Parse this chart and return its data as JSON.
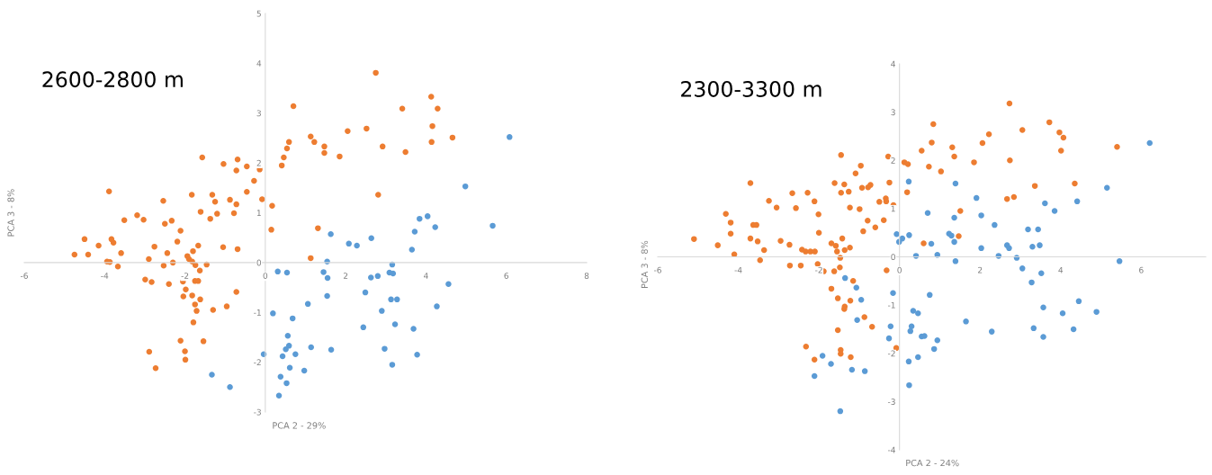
{
  "chart_data": [
    {
      "type": "scatter",
      "title": "2600-2800 m",
      "xlabel": "PCA 2 - 29%",
      "ylabel": "PCA 3 - 8%",
      "xlim": [
        -6,
        8
      ],
      "ylim": [
        -3,
        5
      ],
      "xticks": [
        -6,
        -4,
        -2,
        0,
        2,
        4,
        6,
        8
      ],
      "yticks": [
        -3,
        -2,
        -1,
        0,
        1,
        2,
        3,
        4,
        5
      ],
      "grid": false,
      "marker": "circle",
      "series": [
        {
          "color": "#ed7d31",
          "x": [
            2.75,
            4.13,
            3.41,
            4.29,
            0.7,
            2.52,
            2.05,
            4.16,
            4.66,
            4.14,
            1.13,
            1.22,
            0.59,
            0.54,
            2.92,
            1.47,
            1.47,
            3.49,
            1.85,
            0.46,
            0.41,
            -1.57,
            -0.69,
            -1.04,
            -0.72,
            -0.46,
            -0.14,
            -0.28,
            -3.89,
            -0.46,
            -1.83,
            -1.32,
            -1.25,
            -2.54,
            -0.88,
            -0.72,
            -0.08,
            0.17,
            2.81,
            -1.61,
            -1.2,
            -0.78,
            -1.37,
            -3.19,
            -3.03,
            -3.51,
            -2.33,
            -2.5,
            -2.11,
            0.15,
            1.31,
            -4.5,
            -3.83,
            -3.78,
            -2.19,
            -4.15,
            -2.76,
            -1.67,
            -1.05,
            -0.69,
            -4.75,
            -4.41,
            -3.59,
            -2.44,
            -1.94,
            -1.8,
            -1.9,
            -3.94,
            -3.87,
            -2.9,
            -2.3,
            -1.82,
            -1.74,
            -1.46,
            -2.53,
            -3.67,
            -1.63,
            1.13,
            -2.99,
            -2.83,
            -2.4,
            -2.05,
            -1.75,
            -1.67,
            -1.98,
            -2.04,
            -1.82,
            -1.62,
            -0.72,
            -1.75,
            -1.71,
            -1.3,
            -0.96,
            -1.79,
            -2.11,
            -1.54,
            -2.89,
            -2.0,
            -1.99,
            -2.73
          ],
          "values": [
            3.81,
            3.33,
            3.09,
            3.09,
            3.14,
            2.69,
            2.64,
            2.74,
            2.51,
            2.42,
            2.53,
            2.42,
            2.42,
            2.29,
            2.33,
            2.33,
            2.2,
            2.22,
            2.13,
            2.11,
            1.95,
            2.11,
            2.07,
            1.98,
            1.85,
            1.93,
            1.87,
            1.64,
            1.43,
            1.42,
            1.36,
            1.36,
            1.22,
            1.24,
            1.26,
            1.17,
            1.27,
            1.14,
            1.36,
            1.02,
            0.98,
            0.99,
            0.88,
            0.95,
            0.86,
            0.85,
            0.84,
            0.78,
            0.64,
            0.66,
            0.69,
            0.47,
            0.47,
            0.4,
            0.42,
            0.34,
            0.32,
            0.34,
            0.31,
            0.27,
            0.16,
            0.16,
            0.19,
            0.19,
            0.13,
            0.23,
            0.07,
            0.02,
            0.01,
            0.07,
            0.0,
            0.02,
            -0.05,
            -0.04,
            -0.06,
            -0.08,
            -0.16,
            0.09,
            -0.34,
            -0.39,
            -0.43,
            -0.38,
            -0.37,
            -0.37,
            -0.54,
            -0.68,
            -0.66,
            -0.74,
            -0.59,
            -0.84,
            -0.97,
            -0.95,
            -0.88,
            -1.2,
            -1.57,
            -1.58,
            -1.79,
            -1.78,
            -1.95,
            -2.12
          ]
        },
        {
          "color": "#5b9bd5",
          "x": [
            6.08,
            4.98,
            4.04,
            3.84,
            5.66,
            4.23,
            3.72,
            1.63,
            2.64,
            2.08,
            2.28,
            3.65,
            1.54,
            3.16,
            0.31,
            0.54,
            1.45,
            1.55,
            2.63,
            2.8,
            3.09,
            3.18,
            4.56,
            2.49,
            1.54,
            3.13,
            3.28,
            1.06,
            4.27,
            2.9,
            0.19,
            0.68,
            3.23,
            2.44,
            3.69,
            0.56,
            0.59,
            0.51,
            1.14,
            1.64,
            2.97,
            -0.04,
            0.75,
            0.43,
            3.78,
            3.16,
            0.61,
            0.97,
            -1.33,
            0.38,
            0.53,
            -0.88,
            0.34
          ],
          "values": [
            2.52,
            1.53,
            0.93,
            0.88,
            0.74,
            0.71,
            0.62,
            0.57,
            0.49,
            0.38,
            0.34,
            0.26,
            0.02,
            -0.04,
            -0.18,
            -0.2,
            -0.19,
            -0.31,
            -0.3,
            -0.27,
            -0.2,
            -0.22,
            -0.43,
            -0.6,
            -0.67,
            -0.74,
            -0.74,
            -0.83,
            -0.88,
            -0.97,
            -1.02,
            -1.12,
            -1.24,
            -1.3,
            -1.33,
            -1.47,
            -1.67,
            -1.74,
            -1.7,
            -1.75,
            -1.73,
            -1.84,
            -1.84,
            -1.88,
            -1.85,
            -2.05,
            -2.11,
            -2.17,
            -2.25,
            -2.29,
            -2.42,
            -2.5,
            -2.67
          ]
        }
      ]
    },
    {
      "type": "scatter",
      "title": "2300-3300 m",
      "xlabel": "PCA 2 - 24%",
      "ylabel": "PCA 3 - 8%",
      "xlim": [
        -6,
        7.6
      ],
      "ylim": [
        -4,
        4
      ],
      "xticks": [
        -6,
        -4,
        -2,
        0,
        2,
        4,
        6
      ],
      "yticks": [
        -4,
        -3,
        -2,
        -1,
        0,
        1,
        2,
        3,
        4
      ],
      "grid": false,
      "marker": "circle",
      "series": [
        {
          "color": "#ed7d31",
          "x": [
            2.73,
            0.84,
            3.72,
            3.05,
            3.97,
            4.07,
            2.22,
            0.8,
            2.06,
            1.31,
            5.4,
            0.55,
            4.01,
            -1.45,
            -0.28,
            1.36,
            2.74,
            0.12,
            0.21,
            1.85,
            -0.96,
            0.73,
            1.03,
            -1.09,
            -3.7,
            -1.61,
            -1.37,
            -0.25,
            3.36,
            4.35,
            -0.72,
            -0.93,
            -0.78,
            -1.45,
            -1.26,
            0.19,
            -2.66,
            -2.28,
            -3.24,
            -2.11,
            -0.34,
            -0.5,
            -0.33,
            2.84,
            2.67,
            -3.05,
            -2.57,
            -1.23,
            -0.99,
            -0.15,
            1.51,
            -4.31,
            -2.01,
            -0.79,
            -0.39,
            -4.19,
            -3.63,
            -3.55,
            -0.6,
            -0.9,
            -4.19,
            -2.0,
            1.47,
            -5.1,
            -3.7,
            -3.52,
            -2.95,
            -1.42,
            -4.51,
            -2.73,
            -1.69,
            -1.58,
            -1.23,
            0.6,
            -3.36,
            -2.42,
            -2.33,
            -2.21,
            -2.1,
            -1.55,
            -1.36,
            -4.1,
            -1.47,
            -3.46,
            -2.72,
            -2.45,
            -2.03,
            -1.88,
            -1.62,
            -1.48,
            -0.32,
            -1.15,
            -1.69,
            -1.53,
            -1.22,
            -1.36,
            -1.37,
            -0.87,
            -0.68,
            -1.53,
            -0.08,
            -2.32,
            -1.46,
            -1.46,
            -2.11,
            -1.21
          ],
          "values": [
            3.18,
            2.75,
            2.79,
            2.63,
            2.58,
            2.47,
            2.54,
            2.37,
            2.36,
            2.27,
            2.28,
            2.2,
            2.2,
            2.11,
            2.08,
            2.08,
            2.0,
            1.96,
            1.92,
            1.96,
            1.89,
            1.87,
            1.77,
            1.73,
            1.53,
            1.53,
            1.5,
            1.54,
            1.47,
            1.52,
            1.49,
            1.43,
            1.44,
            1.33,
            1.35,
            1.34,
            1.32,
            1.33,
            1.16,
            1.15,
            1.21,
            1.14,
            1.15,
            1.24,
            1.2,
            1.02,
            1.01,
            1.02,
            0.99,
            1.07,
            0.95,
            0.89,
            0.88,
            0.75,
            0.76,
            0.71,
            0.66,
            0.66,
            0.61,
            0.53,
            0.48,
            0.5,
            0.43,
            0.37,
            0.38,
            0.32,
            0.33,
            0.38,
            0.24,
            0.25,
            0.28,
            0.23,
            0.19,
            0.28,
            0.14,
            0.15,
            0.11,
            0.11,
            0.11,
            0.11,
            0.14,
            0.05,
            -0.02,
            -0.07,
            -0.18,
            -0.18,
            -0.15,
            -0.3,
            -0.3,
            -0.22,
            -0.28,
            -0.5,
            -0.66,
            -0.86,
            -0.91,
            -1.03,
            -1.08,
            -1.25,
            -1.45,
            -1.52,
            -1.89,
            -1.86,
            -1.93,
            -2.01,
            -2.13,
            -2.08
          ]
        },
        {
          "color": "#5b9bd5",
          "x": [
            6.21,
            0.23,
            1.39,
            5.15,
            1.91,
            4.41,
            3.61,
            3.85,
            0.7,
            1.36,
            2.03,
            2.36,
            3.19,
            3.44,
            -0.07,
            0.24,
            0.07,
            -0.01,
            1.23,
            1.29,
            1.36,
            0.79,
            2.67,
            2.72,
            3.3,
            3.48,
            2.03,
            0.41,
            0.94,
            2.46,
            2.91,
            1.39,
            5.46,
            3.05,
            3.52,
            3.28,
            -1.35,
            -1.07,
            -0.95,
            -0.16,
            0.75,
            0.34,
            0.46,
            3.57,
            4.45,
            4.05,
            4.89,
            -1.05,
            1.65,
            -0.22,
            0.3,
            0.27,
            2.29,
            3.33,
            4.32,
            0.55,
            0.62,
            -0.26,
            0.94,
            3.57,
            0.86,
            -1.91,
            0.46,
            0.23,
            -1.7,
            -1.18,
            -0.86,
            -2.11,
            0.24,
            -1.47
          ],
          "values": [
            2.36,
            1.56,
            1.52,
            1.43,
            1.22,
            1.15,
            1.11,
            0.95,
            0.91,
            0.81,
            0.86,
            0.66,
            0.57,
            0.57,
            0.47,
            0.45,
            0.38,
            0.31,
            0.48,
            0.44,
            0.31,
            0.27,
            0.24,
            0.18,
            0.21,
            0.24,
            0.18,
            0.02,
            0.04,
            0.02,
            -0.02,
            -0.09,
            -0.09,
            -0.24,
            -0.34,
            -0.53,
            -0.44,
            -0.64,
            -0.89,
            -0.75,
            -0.79,
            -1.12,
            -1.17,
            -1.05,
            -0.92,
            -1.17,
            -1.14,
            -1.31,
            -1.34,
            -1.44,
            -1.44,
            -1.54,
            -1.55,
            -1.48,
            -1.5,
            -1.65,
            -1.64,
            -1.69,
            -1.73,
            -1.66,
            -1.91,
            -2.05,
            -2.08,
            -2.17,
            -2.22,
            -2.34,
            -2.37,
            -2.47,
            -2.66,
            -3.2
          ]
        }
      ]
    }
  ]
}
